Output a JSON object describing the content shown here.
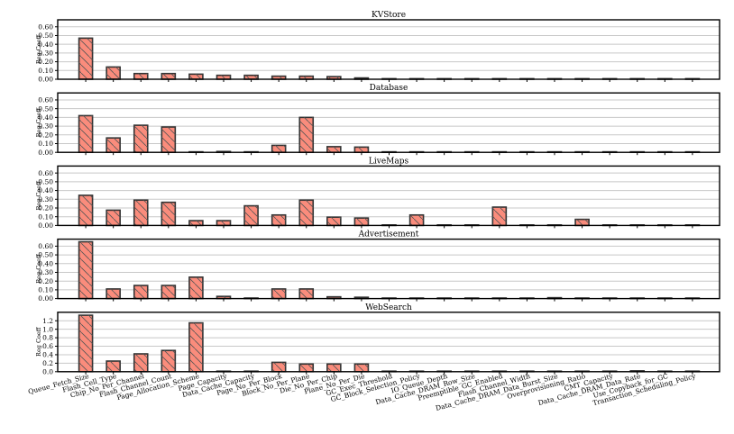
{
  "chart_data": {
    "type": "bar",
    "categories": [
      "Queue_Fetch_Size",
      "Flash_Cell_Type",
      "Chip_No_Per_Channel",
      "Flash_Channel_Count",
      "Page_Allocation_Scheme",
      "Page_Capacity",
      "Data_Cache_Capacity",
      "Page_No_Per_Block",
      "Block_No_Per_Plane",
      "Die_No_Per_Chip",
      "Plane_No_Per_Die",
      "GC_Exec_Threshold",
      "GC_Block_Selection_Policy",
      "IO_Queue_Depth",
      "Data_Cache_DRAM_Row_Size",
      "Preemptible_GC_Enabled",
      "Flash_Channel_Width",
      "Data_Cache_DRAM_Data_Burst_Size",
      "Overprovisioning_Ratio",
      "CMT_Capacity",
      "Data_Cache_DRAM_Data_Rate",
      "Use_Copyback_for_GC",
      "Transaction_Scheduling_Policy"
    ],
    "panels": [
      {
        "title": "KVStore",
        "ylabel": "Reg Coeff",
        "ylim": [
          0,
          0.68
        ],
        "yticks": [
          "0.00",
          "0.10",
          "0.20",
          "0.30",
          "0.40",
          "0.50",
          "0.60"
        ],
        "values": [
          0.47,
          0.14,
          0.065,
          0.065,
          0.058,
          0.045,
          0.045,
          0.035,
          0.035,
          0.03,
          0.015,
          0.005,
          0.005,
          0.005,
          0.005,
          0.005,
          0.005,
          0.005,
          0.005,
          0.005,
          0.005,
          0.005,
          0.005
        ]
      },
      {
        "title": "Database",
        "ylabel": "Reg Coeff",
        "ylim": [
          0,
          0.68
        ],
        "yticks": [
          "0.00",
          "0.10",
          "0.20",
          "0.30",
          "0.40",
          "0.50",
          "0.60"
        ],
        "values": [
          0.42,
          0.165,
          0.31,
          0.29,
          0.005,
          0.01,
          0.005,
          0.08,
          0.4,
          0.065,
          0.06,
          0.005,
          0.005,
          0.005,
          0.005,
          0.005,
          0.005,
          0.005,
          0.005,
          0.005,
          0.005,
          0.005,
          0.005
        ]
      },
      {
        "title": "LiveMaps",
        "ylabel": "Reg Coeff",
        "ylim": [
          0,
          0.68
        ],
        "yticks": [
          "0.00",
          "0.10",
          "0.20",
          "0.30",
          "0.40",
          "0.50",
          "0.60"
        ],
        "values": [
          0.345,
          0.175,
          0.29,
          0.265,
          0.055,
          0.055,
          0.225,
          0.12,
          0.29,
          0.095,
          0.085,
          0.005,
          0.12,
          0.005,
          0.005,
          0.21,
          0.005,
          0.005,
          0.07,
          0.005,
          0.005,
          0.005,
          0.005
        ]
      },
      {
        "title": "Advertisement",
        "ylabel": "Reg Coeff",
        "ylim": [
          0,
          0.68
        ],
        "yticks": [
          "0.00",
          "0.10",
          "0.20",
          "0.30",
          "0.40",
          "0.50",
          "0.60"
        ],
        "values": [
          0.65,
          0.11,
          0.15,
          0.15,
          0.245,
          0.025,
          0.005,
          0.11,
          0.11,
          0.02,
          0.015,
          0.005,
          0.005,
          0.005,
          0.005,
          0.005,
          0.005,
          0.01,
          0.005,
          0.005,
          0.005,
          0.005,
          0.005
        ]
      },
      {
        "title": "WebSearch",
        "ylabel": "Reg Coeff",
        "ylim": [
          0,
          1.4
        ],
        "yticks": [
          "0.0",
          "0.2",
          "0.4",
          "0.6",
          "0.8",
          "1.0",
          "1.2"
        ],
        "values": [
          1.33,
          0.25,
          0.42,
          0.5,
          1.15,
          0.01,
          0.01,
          0.22,
          0.18,
          0.18,
          0.18,
          0.01,
          0.01,
          0.01,
          0.01,
          0.01,
          0.01,
          0.01,
          0.01,
          0.01,
          0.02,
          0.01,
          0.01
        ]
      }
    ],
    "grid": true,
    "colors": {
      "bar_fill": "#fa8c7c",
      "bar_edge": "#333333",
      "grid": "#c8c8c8"
    }
  }
}
